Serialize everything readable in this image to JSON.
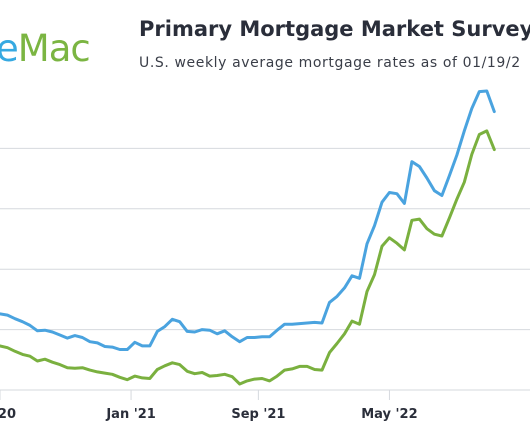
{
  "header": {
    "logo_text_e": "e",
    "logo_text_mac": "Mac",
    "title": "Primary Mortgage Market Survey",
    "title_mark": "®",
    "subtitle": "U.S. weekly average mortgage rates as of 01/19/2"
  },
  "colors": {
    "series_30yr": "#4aa3df",
    "series_15yr": "#7ab03f",
    "grid": "#d6d9de",
    "axis_text": "#2a2e3a"
  },
  "chart_data": {
    "type": "line",
    "title": "Primary Mortgage Market Survey",
    "x_tick_labels": [
      "20",
      "Jan '21",
      "Sep '21",
      "May '22"
    ],
    "x_tick_dates": [
      "2020-05-07",
      "2021-01-07",
      "2021-09-02",
      "2022-05-05"
    ],
    "xlim": [
      "2020-05-07",
      "2023-01-19"
    ],
    "ylim": [
      2,
      7
    ],
    "grid": true,
    "series": [
      {
        "points": [
          [
            "2020-05-07",
            3.26
          ],
          [
            "2020-05-21",
            3.24
          ],
          [
            "2020-06-04",
            3.18
          ],
          [
            "2020-06-18",
            3.13
          ],
          [
            "2020-07-02",
            3.07
          ],
          [
            "2020-07-16",
            2.98
          ],
          [
            "2020-07-30",
            2.99
          ],
          [
            "2020-08-13",
            2.96
          ],
          [
            "2020-08-27",
            2.91
          ],
          [
            "2020-09-10",
            2.86
          ],
          [
            "2020-09-24",
            2.9
          ],
          [
            "2020-10-08",
            2.87
          ],
          [
            "2020-10-22",
            2.8
          ],
          [
            "2020-11-05",
            2.78
          ],
          [
            "2020-11-19",
            2.72
          ],
          [
            "2020-12-03",
            2.71
          ],
          [
            "2020-12-17",
            2.67
          ],
          [
            "2020-12-31",
            2.67
          ],
          [
            "2021-01-14",
            2.79
          ],
          [
            "2021-01-28",
            2.73
          ],
          [
            "2021-02-11",
            2.73
          ],
          [
            "2021-02-25",
            2.97
          ],
          [
            "2021-03-11",
            3.05
          ],
          [
            "2021-03-25",
            3.17
          ],
          [
            "2021-04-08",
            3.13
          ],
          [
            "2021-04-22",
            2.97
          ],
          [
            "2021-05-06",
            2.96
          ],
          [
            "2021-05-20",
            3.0
          ],
          [
            "2021-06-03",
            2.99
          ],
          [
            "2021-06-17",
            2.93
          ],
          [
            "2021-07-01",
            2.98
          ],
          [
            "2021-07-15",
            2.88
          ],
          [
            "2021-07-29",
            2.8
          ],
          [
            "2021-08-12",
            2.87
          ],
          [
            "2021-08-26",
            2.87
          ],
          [
            "2021-09-09",
            2.88
          ],
          [
            "2021-09-23",
            2.88
          ],
          [
            "2021-10-07",
            2.99
          ],
          [
            "2021-10-21",
            3.09
          ],
          [
            "2021-11-04",
            3.09
          ],
          [
            "2021-11-18",
            3.1
          ],
          [
            "2021-12-02",
            3.11
          ],
          [
            "2021-12-16",
            3.12
          ],
          [
            "2021-12-30",
            3.11
          ],
          [
            "2022-01-13",
            3.45
          ],
          [
            "2022-01-27",
            3.55
          ],
          [
            "2022-02-10",
            3.69
          ],
          [
            "2022-02-24",
            3.89
          ],
          [
            "2022-03-10",
            3.85
          ],
          [
            "2022-03-24",
            4.42
          ],
          [
            "2022-04-07",
            4.72
          ],
          [
            "2022-04-21",
            5.11
          ],
          [
            "2022-05-05",
            5.27
          ],
          [
            "2022-05-19",
            5.25
          ],
          [
            "2022-06-02",
            5.09
          ],
          [
            "2022-06-16",
            5.78
          ],
          [
            "2022-06-30",
            5.7
          ],
          [
            "2022-07-14",
            5.51
          ],
          [
            "2022-07-28",
            5.3
          ],
          [
            "2022-08-11",
            5.22
          ],
          [
            "2022-08-25",
            5.55
          ],
          [
            "2022-09-08",
            5.89
          ],
          [
            "2022-09-22",
            6.29
          ],
          [
            "2022-10-06",
            6.66
          ],
          [
            "2022-10-20",
            6.94
          ],
          [
            "2022-11-03",
            6.95
          ],
          [
            "2022-11-17",
            6.61
          ]
        ]
      },
      {
        "points": [
          [
            "2020-05-07",
            2.73
          ],
          [
            "2020-05-21",
            2.7
          ],
          [
            "2020-06-04",
            2.64
          ],
          [
            "2020-06-18",
            2.59
          ],
          [
            "2020-07-02",
            2.56
          ],
          [
            "2020-07-16",
            2.48
          ],
          [
            "2020-07-30",
            2.51
          ],
          [
            "2020-08-13",
            2.46
          ],
          [
            "2020-08-27",
            2.42
          ],
          [
            "2020-09-10",
            2.37
          ],
          [
            "2020-09-24",
            2.36
          ],
          [
            "2020-10-08",
            2.37
          ],
          [
            "2020-10-22",
            2.33
          ],
          [
            "2020-11-05",
            2.3
          ],
          [
            "2020-11-19",
            2.28
          ],
          [
            "2020-12-03",
            2.26
          ],
          [
            "2020-12-17",
            2.21
          ],
          [
            "2020-12-31",
            2.17
          ],
          [
            "2021-01-14",
            2.23
          ],
          [
            "2021-01-28",
            2.2
          ],
          [
            "2021-02-11",
            2.19
          ],
          [
            "2021-02-25",
            2.34
          ],
          [
            "2021-03-11",
            2.4
          ],
          [
            "2021-03-25",
            2.45
          ],
          [
            "2021-04-08",
            2.42
          ],
          [
            "2021-04-22",
            2.31
          ],
          [
            "2021-05-06",
            2.27
          ],
          [
            "2021-05-20",
            2.29
          ],
          [
            "2021-06-03",
            2.23
          ],
          [
            "2021-06-17",
            2.24
          ],
          [
            "2021-07-01",
            2.26
          ],
          [
            "2021-07-15",
            2.22
          ],
          [
            "2021-07-29",
            2.1
          ],
          [
            "2021-08-12",
            2.15
          ],
          [
            "2021-08-26",
            2.18
          ],
          [
            "2021-09-09",
            2.19
          ],
          [
            "2021-09-23",
            2.15
          ],
          [
            "2021-10-07",
            2.23
          ],
          [
            "2021-10-21",
            2.33
          ],
          [
            "2021-11-04",
            2.35
          ],
          [
            "2021-11-18",
            2.39
          ],
          [
            "2021-12-02",
            2.39
          ],
          [
            "2021-12-16",
            2.34
          ],
          [
            "2021-12-30",
            2.33
          ],
          [
            "2022-01-13",
            2.62
          ],
          [
            "2022-01-27",
            2.77
          ],
          [
            "2022-02-10",
            2.93
          ],
          [
            "2022-02-24",
            3.14
          ],
          [
            "2022-03-10",
            3.09
          ],
          [
            "2022-03-24",
            3.63
          ],
          [
            "2022-04-07",
            3.91
          ],
          [
            "2022-04-21",
            4.38
          ],
          [
            "2022-05-05",
            4.52
          ],
          [
            "2022-05-19",
            4.43
          ],
          [
            "2022-06-02",
            4.32
          ],
          [
            "2022-06-16",
            4.81
          ],
          [
            "2022-06-30",
            4.83
          ],
          [
            "2022-07-14",
            4.67
          ],
          [
            "2022-07-28",
            4.58
          ],
          [
            "2022-08-11",
            4.55
          ],
          [
            "2022-08-25",
            4.85
          ],
          [
            "2022-09-08",
            5.16
          ],
          [
            "2022-09-22",
            5.44
          ],
          [
            "2022-10-06",
            5.9
          ],
          [
            "2022-10-20",
            6.23
          ],
          [
            "2022-11-03",
            6.29
          ],
          [
            "2022-11-17",
            5.98
          ]
        ]
      }
    ]
  }
}
